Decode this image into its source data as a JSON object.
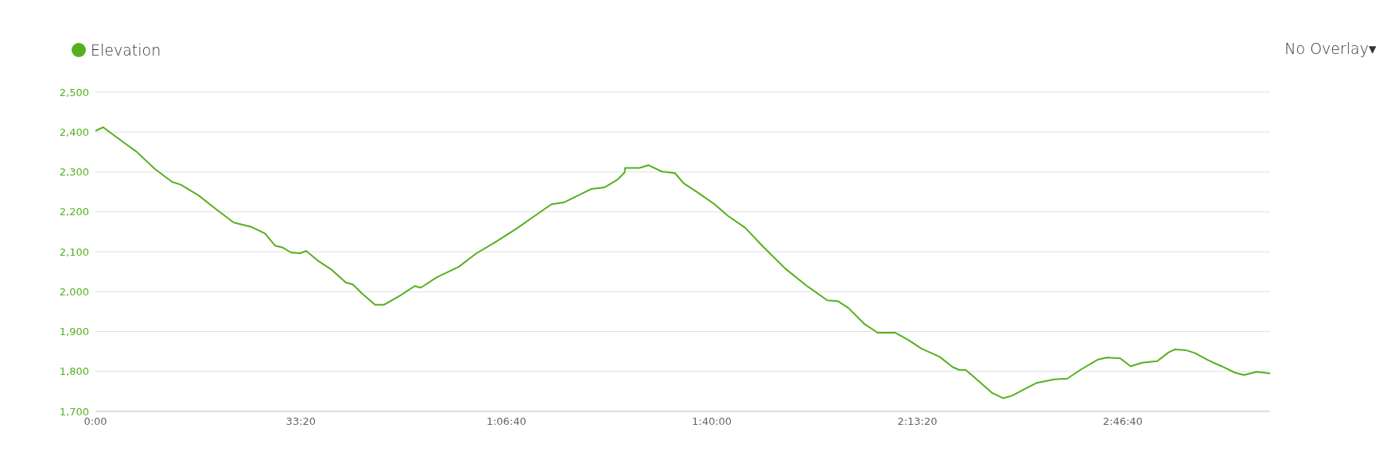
{
  "chart_data": {
    "type": "line",
    "xlim": [
      0,
      190.56
    ],
    "xticks": [
      {
        "value": 0,
        "label": "0:00"
      },
      {
        "value": 33.333,
        "label": "33:20"
      },
      {
        "value": 66.667,
        "label": "1:06:40"
      },
      {
        "value": 100,
        "label": "1:40:00"
      },
      {
        "value": 133.333,
        "label": "2:13:20"
      },
      {
        "value": 166.667,
        "label": "2:46:40"
      }
    ],
    "ylim": [
      1700,
      2500
    ],
    "yticks": [
      {
        "value": 1700,
        "label": "1,700"
      },
      {
        "value": 1800,
        "label": "1,800"
      },
      {
        "value": 1900,
        "label": "1,900"
      },
      {
        "value": 2000,
        "label": "2,000"
      },
      {
        "value": 2100,
        "label": "2,100"
      },
      {
        "value": 2200,
        "label": "2,200"
      },
      {
        "value": 2300,
        "label": "2,300"
      },
      {
        "value": 2400,
        "label": "2,400"
      },
      {
        "value": 2500,
        "label": "2,500"
      }
    ],
    "grid": "y",
    "legend": "top left",
    "marker": "none",
    "line_style": "solid",
    "annotations": [
      "No Overlay▾"
    ],
    "x": [
      0,
      1.26,
      2.46,
      4.56,
      6.72,
      9.6,
      12.42,
      13.86,
      16.74,
      19.62,
      22.44,
      25.32,
      27.48,
      29.16,
      30.3,
      31.74,
      33.18,
      34.2,
      36.06,
      38.22,
      40.62,
      41.76,
      43.2,
      45.36,
      46.8,
      49.62,
      51.78,
      52.8,
      55.38,
      58.92,
      61.8,
      64.68,
      68.22,
      71.1,
      73.98,
      76.08,
      78.96,
      80.4,
      82.56,
      84.72,
      85.86,
      85.92,
      88.26,
      89.7,
      91.86,
      94.02,
      95.4,
      97.56,
      100.44,
      102.6,
      105.42,
      108.3,
      111.9,
      115.44,
      118.74,
      120.48,
      122.16,
      124.74,
      126.9,
      129.78,
      131.88,
      134.04,
      136.92,
      139.08,
      140.1,
      141.18,
      143.34,
      145.5,
      147.24,
      148.68,
      151.26,
      152.64,
      155.52,
      157.68,
      159.78,
      162.66,
      164.1,
      166.26,
      167.94,
      169.8,
      172.26,
      174.12,
      175.08,
      176.94,
      178.38,
      180.54,
      182.7,
      184.86,
      186.3,
      188.4,
      190.56
    ],
    "series": [
      {
        "name": "Elevation",
        "color": "#55b01e",
        "values": [
          2403,
          2412,
          2398,
          2374,
          2350,
          2308,
          2275,
          2268,
          2241,
          2206,
          2173,
          2162,
          2146,
          2115,
          2111,
          2098,
          2096,
          2102,
          2078,
          2056,
          2023,
          2018,
          1996,
          1967,
          1967,
          1992,
          2014,
          2010,
          2036,
          2062,
          2096,
          2122,
          2157,
          2188,
          2219,
          2224,
          2246,
          2257,
          2261,
          2281,
          2299,
          2310,
          2310,
          2317,
          2301,
          2297,
          2272,
          2250,
          2219,
          2190,
          2160,
          2113,
          2058,
          2014,
          1978,
          1976,
          1959,
          1919,
          1897,
          1897,
          1879,
          1857,
          1837,
          1811,
          1804,
          1804,
          1775,
          1746,
          1733,
          1739,
          1760,
          1771,
          1780,
          1782,
          1804,
          1830,
          1835,
          1833,
          1813,
          1822,
          1826,
          1848,
          1855,
          1853,
          1846,
          1828,
          1813,
          1797,
          1791,
          1799,
          1795
        ]
      }
    ]
  }
}
